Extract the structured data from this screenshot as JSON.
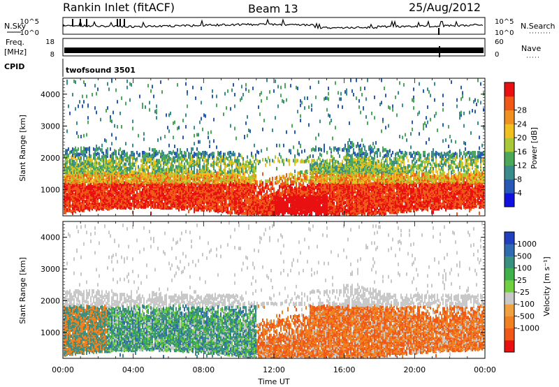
{
  "header": {
    "station": "Rankin Inlet (fitACF)",
    "beam": "Beam 13",
    "date": "25/Aug/2012"
  },
  "strips": {
    "sky": {
      "label_left": "N.Sky",
      "label_right": "N.Search",
      "ticks_left": [
        "10^5",
        "10^0"
      ],
      "ticks_right": [
        "10^5",
        "10^0"
      ]
    },
    "freq": {
      "label_left_1": "Freq.",
      "label_left_2": "[MHz]",
      "label_right": "Nave",
      "ticks_left": [
        "18",
        "8"
      ],
      "ticks_right": [
        "60",
        "0"
      ]
    },
    "cpid": {
      "label_left": "CPID",
      "value": "twofsound 3501"
    }
  },
  "chart_data": [
    {
      "type": "heatmap",
      "title": "",
      "xlabel": "Time UT",
      "ylabel": "Slant Range [km]",
      "x_ticks": [
        "00:00",
        "04:00",
        "08:00",
        "12:00",
        "16:00",
        "20:00",
        "00:00"
      ],
      "x_range_hours": [
        0,
        24
      ],
      "ylim": [
        180,
        4500
      ],
      "y_ticks": [
        1000,
        2000,
        3000,
        4000
      ],
      "colorbar": {
        "label": "Power [dB]",
        "range": [
          0,
          32
        ],
        "ticks": [
          "4",
          "8",
          "12",
          "16",
          "20",
          "24",
          "28"
        ],
        "colors": [
          "#1010e0",
          "#2858b8",
          "#3a8c8c",
          "#4aa858",
          "#a8c838",
          "#f0c020",
          "#f09020",
          "#f05818",
          "#e81010"
        ]
      }
    },
    {
      "type": "heatmap",
      "title": "",
      "xlabel": "Time UT",
      "ylabel": "Slant Range [km]",
      "x_ticks": [
        "00:00",
        "04:00",
        "08:00",
        "12:00",
        "16:00",
        "20:00",
        "00:00"
      ],
      "x_range_hours": [
        0,
        24
      ],
      "ylim": [
        180,
        4500
      ],
      "y_ticks": [
        1000,
        2000,
        3000,
        4000
      ],
      "colorbar": {
        "label": "Velocity [m s⁻¹]",
        "ticks": [
          "1000",
          "500",
          "100",
          "25",
          "-25",
          "-100",
          "-500",
          "-1000"
        ],
        "colors": [
          "#2040c0",
          "#306ab0",
          "#3a9080",
          "#40b048",
          "#70d040",
          "#c8c8c8",
          "#f0a040",
          "#f08020",
          "#f05818",
          "#e81010"
        ]
      }
    }
  ]
}
